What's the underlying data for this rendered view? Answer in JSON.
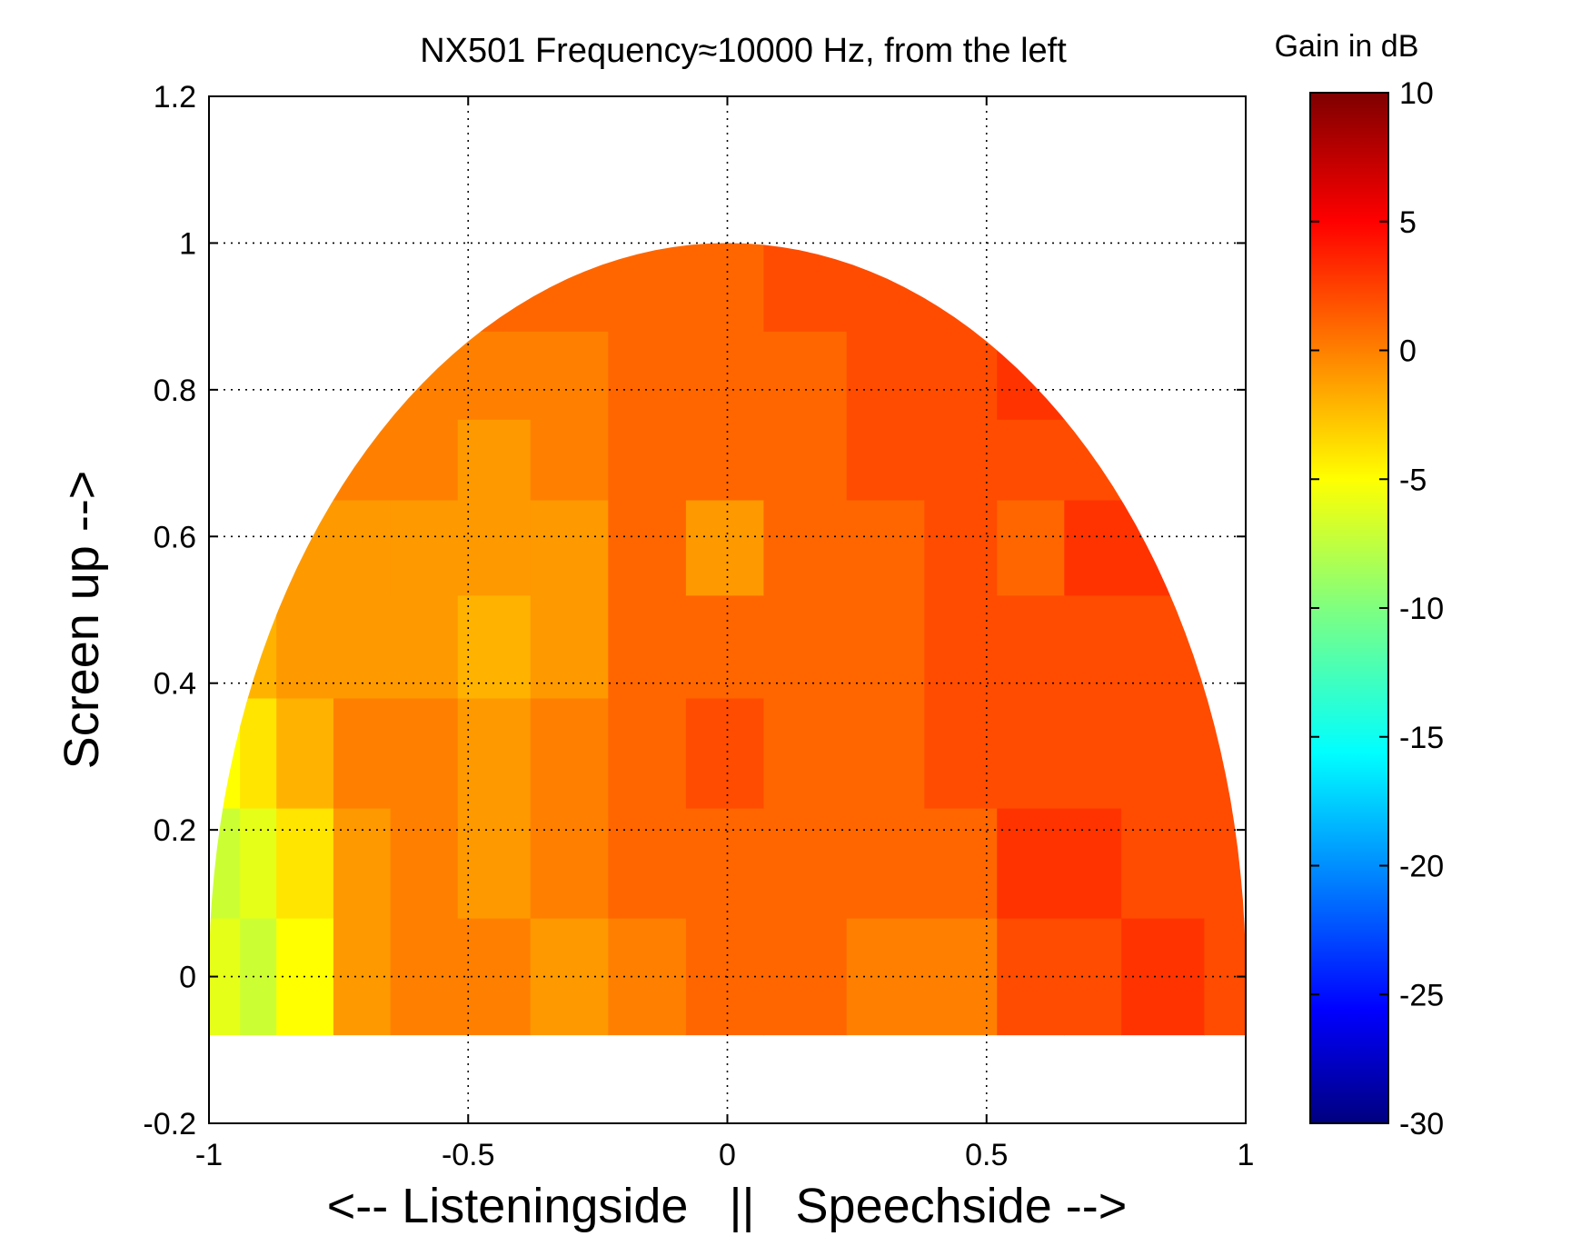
{
  "chart_data": {
    "type": "heatmap",
    "title": "NX501 Frequency≈10000 Hz, from the left",
    "xlabel": "<-- Listeningside   ||   Speechside -->",
    "ylabel": "Screen up -->",
    "xlim": [
      -1,
      1
    ],
    "ylim": [
      -0.2,
      1.2
    ],
    "grid": true,
    "x_ticks": [
      "-1",
      "-0.5",
      "0",
      "0.5",
      "1"
    ],
    "y_ticks": [
      "-0.2",
      "0",
      "0.2",
      "0.4",
      "0.6",
      "0.8",
      "1",
      "1.2"
    ],
    "colorbar": {
      "title": "Gain in dB",
      "colormap": "jet",
      "range": [
        -30,
        10
      ],
      "ticks": [
        "10",
        "5",
        "0",
        "-5",
        "-10",
        "-15",
        "-20",
        "-25",
        "-30"
      ]
    },
    "cell_colors": {
      "orange": "#FF8800",
      "dark_orange": "#FF6A00",
      "red_orange": "#FF5500",
      "red": "#FF4400",
      "light_orange": "#FFA000",
      "amber": "#FFB000",
      "gold": "#FFC800",
      "yellow": "#FFFF00",
      "yellow_green": "#DDFF30",
      "lime": "#B0FF50"
    },
    "rows": [
      {
        "y": [
          -0.08,
          0.08
        ],
        "cells": [
          {
            "x": [
              -1.0,
              -0.94
            ],
            "gain": -6
          },
          {
            "x": [
              -0.94,
              -0.87
            ],
            "gain": -7
          },
          {
            "x": [
              -0.87,
              -0.76
            ],
            "gain": -5
          },
          {
            "x": [
              -0.76,
              -0.65
            ],
            "gain": -1
          },
          {
            "x": [
              -0.65,
              -0.38
            ],
            "gain": 0
          },
          {
            "x": [
              -0.38,
              -0.23
            ],
            "gain": -1
          },
          {
            "x": [
              -0.23,
              -0.08
            ],
            "gain": 0
          },
          {
            "x": [
              -0.08,
              0.07
            ],
            "gain": 1
          },
          {
            "x": [
              0.07,
              0.23
            ],
            "gain": 1
          },
          {
            "x": [
              0.23,
              0.52
            ],
            "gain": 0
          },
          {
            "x": [
              0.52,
              0.65
            ],
            "gain": 2
          },
          {
            "x": [
              0.65,
              0.76
            ],
            "gain": 2
          },
          {
            "x": [
              0.76,
              0.92
            ],
            "gain": 3
          },
          {
            "x": [
              0.92,
              1.0
            ],
            "gain": 2
          }
        ]
      },
      {
        "y": [
          0.08,
          0.23
        ],
        "cells": [
          {
            "x": [
              -1.0,
              -0.94
            ],
            "gain": -7
          },
          {
            "x": [
              -0.94,
              -0.87
            ],
            "gain": -6
          },
          {
            "x": [
              -0.87,
              -0.76
            ],
            "gain": -4
          },
          {
            "x": [
              -0.76,
              -0.65
            ],
            "gain": -1
          },
          {
            "x": [
              -0.65,
              -0.52
            ],
            "gain": 0
          },
          {
            "x": [
              -0.52,
              -0.38
            ],
            "gain": -1
          },
          {
            "x": [
              -0.38,
              -0.23
            ],
            "gain": 0
          },
          {
            "x": [
              -0.23,
              -0.08
            ],
            "gain": 1
          },
          {
            "x": [
              -0.08,
              0.07
            ],
            "gain": 1
          },
          {
            "x": [
              0.07,
              0.23
            ],
            "gain": 1
          },
          {
            "x": [
              0.23,
              0.38
            ],
            "gain": 1
          },
          {
            "x": [
              0.38,
              0.52
            ],
            "gain": 1
          },
          {
            "x": [
              0.52,
              0.76
            ],
            "gain": 3
          },
          {
            "x": [
              0.76,
              0.92
            ],
            "gain": 2
          },
          {
            "x": [
              0.92,
              1.0
            ],
            "gain": 2
          }
        ]
      },
      {
        "y": [
          0.23,
          0.38
        ],
        "cells": [
          {
            "x": [
              -1.0,
              -0.94
            ],
            "gain": -5
          },
          {
            "x": [
              -0.94,
              -0.87
            ],
            "gain": -4
          },
          {
            "x": [
              -0.87,
              -0.76
            ],
            "gain": -2
          },
          {
            "x": [
              -0.76,
              -0.52
            ],
            "gain": 0
          },
          {
            "x": [
              -0.52,
              -0.38
            ],
            "gain": -1
          },
          {
            "x": [
              -0.38,
              -0.23
            ],
            "gain": 0
          },
          {
            "x": [
              -0.23,
              -0.08
            ],
            "gain": 1
          },
          {
            "x": [
              -0.08,
              0.07
            ],
            "gain": 2
          },
          {
            "x": [
              0.07,
              0.38
            ],
            "gain": 1
          },
          {
            "x": [
              0.38,
              0.52
            ],
            "gain": 2
          },
          {
            "x": [
              0.52,
              0.65
            ],
            "gain": 2
          },
          {
            "x": [
              0.65,
              1.0
            ],
            "gain": 2
          }
        ]
      },
      {
        "y": [
          0.38,
          0.52
        ],
        "cells": [
          {
            "x": [
              -1.0,
              -0.87
            ],
            "gain": -2
          },
          {
            "x": [
              -0.87,
              -0.76
            ],
            "gain": -1
          },
          {
            "x": [
              -0.76,
              -0.52
            ],
            "gain": -1
          },
          {
            "x": [
              -0.52,
              -0.38
            ],
            "gain": -2
          },
          {
            "x": [
              -0.38,
              -0.23
            ],
            "gain": -1
          },
          {
            "x": [
              -0.23,
              -0.08
            ],
            "gain": 1
          },
          {
            "x": [
              -0.08,
              0.07
            ],
            "gain": 1
          },
          {
            "x": [
              0.07,
              0.23
            ],
            "gain": 1
          },
          {
            "x": [
              0.23,
              0.38
            ],
            "gain": 1
          },
          {
            "x": [
              0.38,
              0.52
            ],
            "gain": 2
          },
          {
            "x": [
              0.52,
              1.0
            ],
            "gain": 2
          }
        ]
      },
      {
        "y": [
          0.52,
          0.65
        ],
        "cells": [
          {
            "x": [
              -1.0,
              -0.65
            ],
            "gain": -1
          },
          {
            "x": [
              -0.65,
              -0.38
            ],
            "gain": -1
          },
          {
            "x": [
              -0.38,
              -0.23
            ],
            "gain": -1
          },
          {
            "x": [
              -0.23,
              -0.08
            ],
            "gain": 1
          },
          {
            "x": [
              -0.08,
              0.07
            ],
            "gain": -1
          },
          {
            "x": [
              0.07,
              0.23
            ],
            "gain": 1
          },
          {
            "x": [
              0.23,
              0.38
            ],
            "gain": 1
          },
          {
            "x": [
              0.38,
              0.52
            ],
            "gain": 2
          },
          {
            "x": [
              0.52,
              0.65
            ],
            "gain": 1
          },
          {
            "x": [
              0.65,
              1.0
            ],
            "gain": 3
          }
        ]
      },
      {
        "y": [
          0.65,
          0.76
        ],
        "cells": [
          {
            "x": [
              -1.0,
              -0.52
            ],
            "gain": 0
          },
          {
            "x": [
              -0.52,
              -0.38
            ],
            "gain": -1
          },
          {
            "x": [
              -0.38,
              -0.23
            ],
            "gain": 0
          },
          {
            "x": [
              -0.23,
              -0.08
            ],
            "gain": 1
          },
          {
            "x": [
              -0.08,
              0.07
            ],
            "gain": 1
          },
          {
            "x": [
              0.07,
              0.23
            ],
            "gain": 1
          },
          {
            "x": [
              0.23,
              0.38
            ],
            "gain": 2
          },
          {
            "x": [
              0.38,
              0.52
            ],
            "gain": 2
          },
          {
            "x": [
              0.52,
              0.76
            ],
            "gain": 2
          },
          {
            "x": [
              0.76,
              1.0
            ],
            "gain": 3
          }
        ]
      },
      {
        "y": [
          0.76,
          0.88
        ],
        "cells": [
          {
            "x": [
              -1.0,
              -0.38
            ],
            "gain": 0
          },
          {
            "x": [
              -0.38,
              -0.23
            ],
            "gain": 0
          },
          {
            "x": [
              -0.23,
              -0.08
            ],
            "gain": 1
          },
          {
            "x": [
              -0.08,
              0.07
            ],
            "gain": 1
          },
          {
            "x": [
              0.07,
              0.23
            ],
            "gain": 1
          },
          {
            "x": [
              0.23,
              0.52
            ],
            "gain": 2
          },
          {
            "x": [
              0.52,
              1.0
            ],
            "gain": 3
          }
        ]
      },
      {
        "y": [
          0.88,
          1.0
        ],
        "cells": [
          {
            "x": [
              -1.0,
              -0.08
            ],
            "gain": 1
          },
          {
            "x": [
              -0.08,
              0.07
            ],
            "gain": 1
          },
          {
            "x": [
              0.07,
              1.0
            ],
            "gain": 2
          }
        ]
      }
    ]
  }
}
